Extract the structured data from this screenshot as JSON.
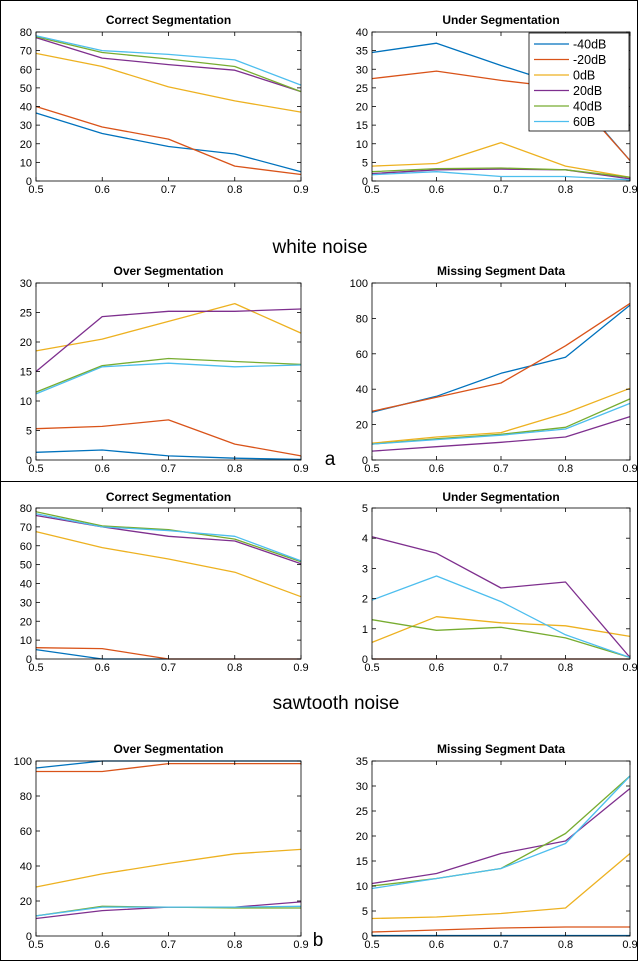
{
  "legend": [
    {
      "name": "-40dB",
      "color": "#0072bd"
    },
    {
      "name": "-20dB",
      "color": "#d95319"
    },
    {
      "name": "0dB",
      "color": "#edb120"
    },
    {
      "name": "20dB",
      "color": "#7e2f8e"
    },
    {
      "name": "40dB",
      "color": "#77ac30"
    },
    {
      "name": "60B",
      "color": "#4dbeee"
    }
  ],
  "sections": [
    {
      "noise_label": "white noise",
      "letter": "a"
    },
    {
      "noise_label": "sawtooth noise",
      "letter": "b"
    }
  ],
  "chart_data": [
    {
      "type": "line",
      "title": "Correct Segmentation",
      "x": [
        0.5,
        0.6,
        0.7,
        0.8,
        0.9
      ],
      "xlim": [
        0.5,
        0.9
      ],
      "ylim": [
        0,
        80
      ],
      "xticks": [
        "0.5",
        "0.6",
        "0.7",
        "0.8",
        "0.9"
      ],
      "yticks": [
        "0",
        "10",
        "20",
        "30",
        "40",
        "50",
        "60",
        "70",
        "80"
      ],
      "series": [
        {
          "name": "-40dB",
          "values": [
            36.5,
            25.5,
            18.5,
            14.5,
            5.0
          ]
        },
        {
          "name": "-20dB",
          "values": [
            40.0,
            29.0,
            22.5,
            8.0,
            3.5
          ]
        },
        {
          "name": "0dB",
          "values": [
            68.5,
            61.5,
            50.5,
            43.0,
            37.0
          ]
        },
        {
          "name": "20dB",
          "values": [
            77.0,
            66.0,
            62.5,
            59.5,
            48.0
          ]
        },
        {
          "name": "40dB",
          "values": [
            77.5,
            69.0,
            65.5,
            61.5,
            48.0
          ]
        },
        {
          "name": "60B",
          "values": [
            78.0,
            70.0,
            68.0,
            65.0,
            51.5
          ]
        }
      ]
    },
    {
      "type": "line",
      "title": "Under Segmentation",
      "x": [
        0.5,
        0.6,
        0.7,
        0.8,
        0.9
      ],
      "xlim": [
        0.5,
        0.9
      ],
      "ylim": [
        0,
        40
      ],
      "xticks": [
        "0.5",
        "0.6",
        "0.7",
        "0.8",
        "0.9"
      ],
      "yticks": [
        "0",
        "5",
        "10",
        "15",
        "20",
        "25",
        "30",
        "35",
        "40"
      ],
      "legend_position": "top-right",
      "series": [
        {
          "name": "-40dB",
          "values": [
            34.5,
            37.0,
            31.0,
            25.5,
            5.5
          ]
        },
        {
          "name": "-20dB",
          "values": [
            27.5,
            29.5,
            27.0,
            25.0,
            5.5
          ]
        },
        {
          "name": "0dB",
          "values": [
            4.0,
            4.7,
            10.3,
            4.0,
            1.0
          ]
        },
        {
          "name": "20dB",
          "values": [
            2.0,
            3.0,
            3.2,
            3.0,
            0.6
          ]
        },
        {
          "name": "40dB",
          "values": [
            2.5,
            3.3,
            3.5,
            3.0,
            1.0
          ]
        },
        {
          "name": "60B",
          "values": [
            1.7,
            2.5,
            1.2,
            1.2,
            0.3
          ]
        }
      ]
    },
    {
      "type": "line",
      "title": "Over Segmentation",
      "x": [
        0.5,
        0.6,
        0.7,
        0.8,
        0.9
      ],
      "xlim": [
        0.5,
        0.9
      ],
      "ylim": [
        0,
        30
      ],
      "xticks": [
        "0.5",
        "0.6",
        "0.7",
        "0.8",
        "0.9"
      ],
      "yticks": [
        "0",
        "5",
        "10",
        "15",
        "20",
        "25",
        "30"
      ],
      "series": [
        {
          "name": "-40dB",
          "values": [
            1.3,
            1.7,
            0.7,
            0.3,
            0.1
          ]
        },
        {
          "name": "-20dB",
          "values": [
            5.3,
            5.7,
            6.8,
            2.7,
            0.7
          ]
        },
        {
          "name": "0dB",
          "values": [
            18.5,
            20.5,
            23.5,
            26.5,
            21.5
          ]
        },
        {
          "name": "20dB",
          "values": [
            15.0,
            24.3,
            25.2,
            25.2,
            25.6
          ]
        },
        {
          "name": "40dB",
          "values": [
            11.5,
            16.0,
            17.2,
            16.7,
            16.2
          ]
        },
        {
          "name": "60B",
          "values": [
            11.2,
            15.8,
            16.4,
            15.8,
            16.1
          ]
        }
      ]
    },
    {
      "type": "line",
      "title": "Missing Segment Data",
      "x": [
        0.5,
        0.6,
        0.7,
        0.8,
        0.9
      ],
      "xlim": [
        0.5,
        0.9
      ],
      "ylim": [
        0,
        100
      ],
      "xticks": [
        "0.5",
        "0.6",
        "0.7",
        "0.8",
        "0.9"
      ],
      "yticks": [
        "0",
        "20",
        "40",
        "60",
        "80",
        "100"
      ],
      "series": [
        {
          "name": "-40dB",
          "values": [
            27.0,
            36.0,
            49.0,
            58.0,
            87.5
          ]
        },
        {
          "name": "-20dB",
          "values": [
            27.5,
            35.5,
            43.5,
            64.5,
            88.5
          ]
        },
        {
          "name": "0dB",
          "values": [
            9.5,
            13.0,
            15.5,
            26.5,
            40.5
          ]
        },
        {
          "name": "20dB",
          "values": [
            5.0,
            7.5,
            10.0,
            13.0,
            24.5
          ]
        },
        {
          "name": "40dB",
          "values": [
            9.0,
            12.0,
            14.5,
            18.5,
            34.5
          ]
        },
        {
          "name": "60B",
          "values": [
            9.0,
            11.5,
            14.0,
            17.5,
            32.0
          ]
        }
      ]
    },
    {
      "type": "line",
      "title": "Correct Segmentation",
      "x": [
        0.5,
        0.6,
        0.7,
        0.8,
        0.9
      ],
      "xlim": [
        0.5,
        0.9
      ],
      "ylim": [
        0,
        80
      ],
      "xticks": [
        "0.5",
        "0.6",
        "0.7",
        "0.8",
        "0.9"
      ],
      "yticks": [
        "0",
        "10",
        "20",
        "30",
        "40",
        "50",
        "60",
        "70",
        "80"
      ],
      "series": [
        {
          "name": "-40dB",
          "values": [
            5.0,
            0.0,
            0.0,
            0.0,
            0.0
          ]
        },
        {
          "name": "-20dB",
          "values": [
            6.0,
            5.5,
            0.0,
            0.0,
            0.0
          ]
        },
        {
          "name": "0dB",
          "values": [
            67.5,
            59.0,
            53.0,
            46.0,
            33.0
          ]
        },
        {
          "name": "20dB",
          "values": [
            76.0,
            70.0,
            65.0,
            62.5,
            50.5
          ]
        },
        {
          "name": "40dB",
          "values": [
            78.0,
            70.5,
            68.5,
            63.5,
            51.5
          ]
        },
        {
          "name": "60B",
          "values": [
            77.0,
            70.0,
            68.0,
            65.0,
            52.0
          ]
        }
      ]
    },
    {
      "type": "line",
      "title": "Under Segmentation",
      "x": [
        0.5,
        0.6,
        0.7,
        0.8,
        0.9
      ],
      "xlim": [
        0.5,
        0.9
      ],
      "ylim": [
        0,
        5
      ],
      "xticks": [
        "0.5",
        "0.6",
        "0.7",
        "0.8",
        "0.9"
      ],
      "yticks": [
        "0",
        "1",
        "2",
        "3",
        "4",
        "5"
      ],
      "series": [
        {
          "name": "-40dB",
          "values": [
            0.0,
            0.0,
            0.0,
            0.0,
            0.0
          ]
        },
        {
          "name": "-20dB",
          "values": [
            0.0,
            0.0,
            0.0,
            0.0,
            0.0
          ]
        },
        {
          "name": "0dB",
          "values": [
            0.55,
            1.4,
            1.2,
            1.1,
            0.75
          ]
        },
        {
          "name": "20dB",
          "values": [
            4.05,
            3.5,
            2.35,
            2.55,
            0.05
          ]
        },
        {
          "name": "40dB",
          "values": [
            1.3,
            0.95,
            1.05,
            0.7,
            0.05
          ]
        },
        {
          "name": "60B",
          "values": [
            1.95,
            2.75,
            1.9,
            0.8,
            0.05
          ]
        }
      ]
    },
    {
      "type": "line",
      "title": "Over Segmentation",
      "x": [
        0.5,
        0.6,
        0.7,
        0.8,
        0.9
      ],
      "xlim": [
        0.5,
        0.9
      ],
      "ylim": [
        0,
        100
      ],
      "xticks": [
        "0.5",
        "0.6",
        "0.7",
        "0.8",
        "0.9"
      ],
      "yticks": [
        "0",
        "20",
        "40",
        "60",
        "80",
        "100"
      ],
      "series": [
        {
          "name": "-40dB",
          "values": [
            96.0,
            100.0,
            100.0,
            100.0,
            100.0
          ]
        },
        {
          "name": "-20dB",
          "values": [
            94.0,
            94.0,
            98.5,
            98.5,
            98.5
          ]
        },
        {
          "name": "0dB",
          "values": [
            28.0,
            35.5,
            41.5,
            47.0,
            49.5
          ]
        },
        {
          "name": "20dB",
          "values": [
            10.0,
            14.5,
            16.5,
            16.5,
            19.5
          ]
        },
        {
          "name": "40dB",
          "values": [
            11.5,
            17.0,
            16.5,
            16.0,
            16.0
          ]
        },
        {
          "name": "60B",
          "values": [
            11.5,
            16.5,
            16.5,
            16.5,
            17.0
          ]
        }
      ]
    },
    {
      "type": "line",
      "title": "Missing Segment Data",
      "x": [
        0.5,
        0.6,
        0.7,
        0.8,
        0.9
      ],
      "xlim": [
        0.5,
        0.9
      ],
      "ylim": [
        0,
        35
      ],
      "xticks": [
        "0.5",
        "0.6",
        "0.7",
        "0.8",
        "0.9"
      ],
      "yticks": [
        "0",
        "5",
        "10",
        "15",
        "20",
        "25",
        "30",
        "35"
      ],
      "series": [
        {
          "name": "-40dB",
          "values": [
            0.1,
            0.1,
            0.1,
            0.1,
            0.1
          ]
        },
        {
          "name": "-20dB",
          "values": [
            0.8,
            1.2,
            1.6,
            1.8,
            1.8
          ]
        },
        {
          "name": "0dB",
          "values": [
            3.5,
            3.8,
            4.5,
            5.6,
            16.5
          ]
        },
        {
          "name": "20dB",
          "values": [
            10.5,
            12.5,
            16.5,
            19.0,
            29.5
          ]
        },
        {
          "name": "40dB",
          "values": [
            10.0,
            11.5,
            13.5,
            20.5,
            32.0
          ]
        },
        {
          "name": "60B",
          "values": [
            9.5,
            11.5,
            13.5,
            18.5,
            32.0
          ]
        }
      ]
    }
  ]
}
